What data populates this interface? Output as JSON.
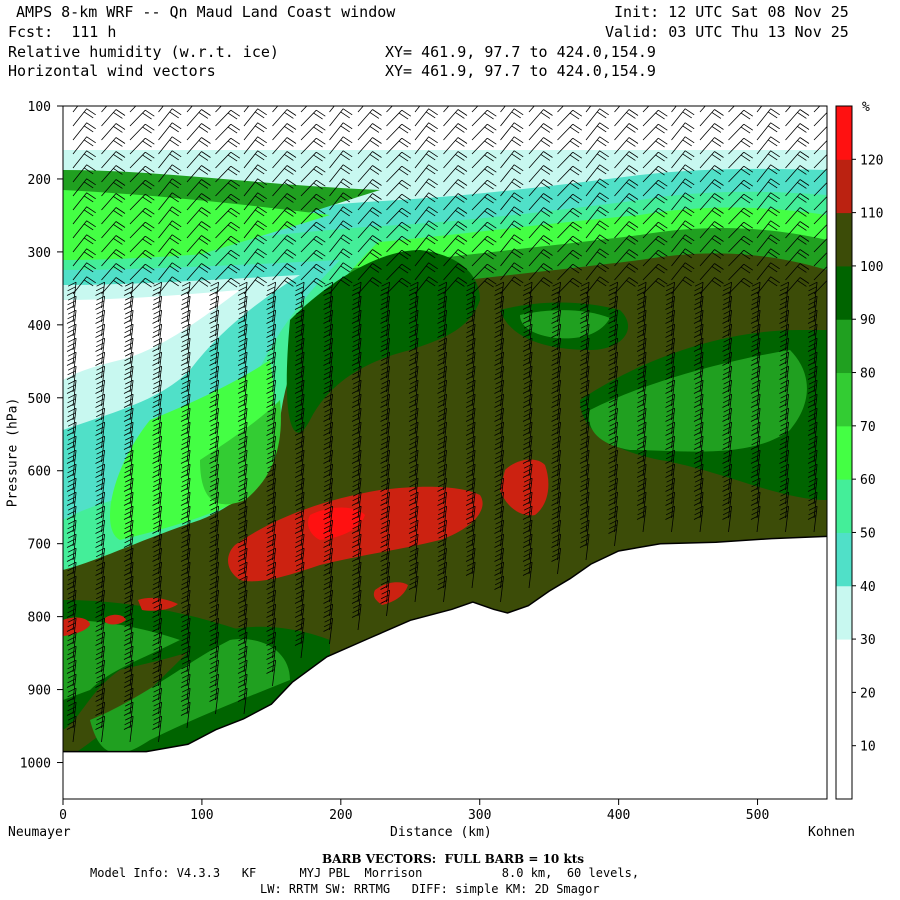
{
  "header": {
    "title": "AMPS 8-km WRF -- Qn Maud Land Coast window",
    "forecast": "Fcst:  111 h",
    "init": "Init: 12 UTC Sat 08 Nov 25",
    "valid": "Valid: 03 UTC Thu 13 Nov 25",
    "field1": "Relative humidity (w.r.t. ice)",
    "field2": "Horizontal wind vectors",
    "xy1": "XY= 461.9, 97.7 to 424.0,154.9",
    "xy2": "XY= 461.9, 97.7 to 424.0,154.9"
  },
  "chart_data": {
    "type": "heatmap",
    "title": "Relative humidity (w.r.t. ice) cross-section",
    "xlabel": "Distance (km)",
    "ylabel": "Pressure (hPa)",
    "xlim": [
      0,
      550
    ],
    "ylim": [
      1050,
      100
    ],
    "x_ticks": [
      0,
      100,
      200,
      300,
      400,
      500
    ],
    "y_ticks": [
      100,
      200,
      300,
      400,
      500,
      600,
      700,
      800,
      900,
      1000
    ],
    "left_endpoint": "Neumayer",
    "right_endpoint": "Kohnen",
    "colorbar": {
      "unit": "%",
      "levels": [
        10,
        20,
        30,
        40,
        50,
        60,
        70,
        80,
        90,
        100,
        110,
        120
      ],
      "colors": [
        "#ffffff",
        "#ffffff",
        "#ffffff",
        "#c8f8f0",
        "#50e0c8",
        "#44ee99",
        "#44ff44",
        "#33cc33",
        "#20a020",
        "#006400",
        "#3c4c08",
        "#bb2211",
        "#ff1111"
      ]
    },
    "terrain_surface_hPa": [
      [
        0,
        985
      ],
      [
        60,
        985
      ],
      [
        90,
        975
      ],
      [
        110,
        955
      ],
      [
        130,
        940
      ],
      [
        150,
        920
      ],
      [
        165,
        890
      ],
      [
        190,
        855
      ],
      [
        220,
        830
      ],
      [
        250,
        805
      ],
      [
        280,
        790
      ],
      [
        295,
        780
      ],
      [
        310,
        790
      ],
      [
        320,
        795
      ],
      [
        335,
        785
      ],
      [
        350,
        765
      ],
      [
        365,
        748
      ],
      [
        380,
        728
      ],
      [
        400,
        710
      ],
      [
        430,
        700
      ],
      [
        470,
        698
      ],
      [
        510,
        693
      ],
      [
        550,
        690
      ]
    ],
    "rh_regions": [
      {
        "band": "30-40",
        "desc": "white/pale cyan upper-left wedge"
      },
      {
        "band": "110-120",
        "desc": "red pockets near 650-750 hPa"
      }
    ],
    "barb_note": "BARB VECTORS:  FULL BARB = 10 kts"
  },
  "footer": {
    "barb": "BARB VECTORS:  FULL BARB = 10 kts",
    "model1": "Model Info: V4.3.3   KF      MYJ PBL  Morrison           8.0 km,  60 levels,",
    "model2": "LW: RRTM SW: RRTMG   DIFF: simple KM: 2D Smagor"
  }
}
